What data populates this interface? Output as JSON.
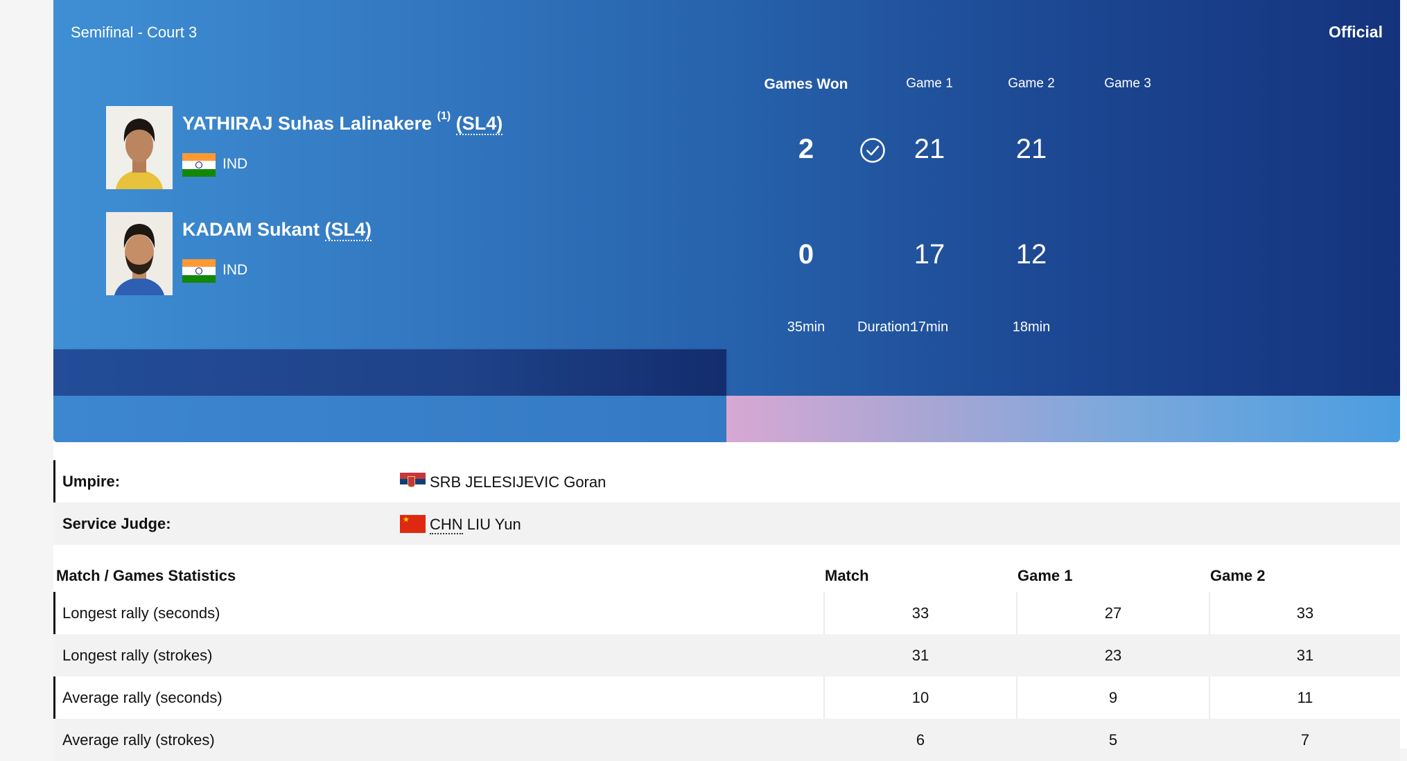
{
  "match": {
    "round": "Semifinal - Court 3",
    "status": "Official",
    "columns": [
      "Games Won",
      "Game 1",
      "Game 2",
      "Game 3"
    ],
    "players": [
      {
        "name": "YATHIRAJ Suhas Lalinakere",
        "seed": "(1)",
        "class": "(SL4)",
        "country": "IND",
        "winner": true,
        "games_won": "2",
        "game_scores": [
          "21",
          "21"
        ]
      },
      {
        "name": "KADAM Sukant",
        "seed": "",
        "class": "(SL4)",
        "country": "IND",
        "winner": false,
        "games_won": "0",
        "game_scores": [
          "17",
          "12"
        ]
      }
    ],
    "duration": {
      "label": "Duration:",
      "total": "35min",
      "games": [
        "17min",
        "18min"
      ]
    }
  },
  "officials": [
    {
      "label": "Umpire:",
      "country": "SRB",
      "name": "JELESIJEVIC Goran",
      "flag": "serbia-flag"
    },
    {
      "label": "Service Judge:",
      "country": "CHN",
      "name": "LIU Yun",
      "flag": "china-flag"
    }
  ],
  "stats": {
    "headers": [
      "Match / Games Statistics",
      "Match",
      "Game 1",
      "Game 2"
    ],
    "rows": [
      {
        "label": "Longest rally (seconds)",
        "values": [
          "33",
          "27",
          "33"
        ]
      },
      {
        "label": "Longest rally (strokes)",
        "values": [
          "31",
          "23",
          "31"
        ]
      },
      {
        "label": "Average rally (seconds)",
        "values": [
          "10",
          "9",
          "11"
        ]
      },
      {
        "label": "Average rally (strokes)",
        "values": [
          "6",
          "5",
          "7"
        ]
      }
    ]
  },
  "colors": {
    "card_gradient_start": "#3f8fd4",
    "card_gradient_end": "#15337d",
    "text_on_card": "#ffffff"
  }
}
